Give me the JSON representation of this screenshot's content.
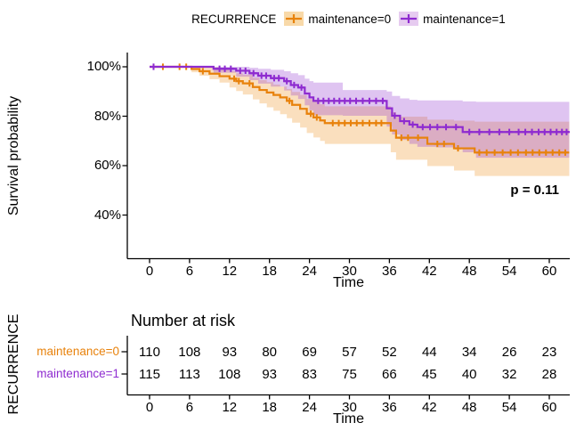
{
  "legend": {
    "title": "RECURRENCE",
    "items": [
      {
        "label": "maintenance=0",
        "line_color": "#E8820C",
        "fill_color": "#F8D9A9"
      },
      {
        "label": "maintenance=1",
        "line_color": "#8E2BD0",
        "fill_color": "#E6CBF0"
      }
    ]
  },
  "axes": {
    "y_title": "Survival probability",
    "x_title": "Time",
    "y_tick_labels": [
      "100%",
      "80%",
      "60%",
      "40%"
    ],
    "y_tick_values": [
      100,
      80,
      60,
      40
    ],
    "x_ticks": [
      0,
      6,
      12,
      18,
      24,
      30,
      36,
      42,
      48,
      54,
      60
    ]
  },
  "annotation": {
    "p_value": "p = 0.11"
  },
  "risk_table": {
    "title": "Number at risk",
    "axis_label": "RECURRENCE",
    "x_title": "Time",
    "x_ticks": [
      0,
      6,
      12,
      18,
      24,
      30,
      36,
      42,
      48,
      54,
      60
    ],
    "rows": [
      {
        "label": "maintenance=0",
        "color": "#E8820C",
        "values": [
          110,
          108,
          93,
          80,
          69,
          57,
          52,
          44,
          34,
          26,
          23
        ]
      },
      {
        "label": "maintenance=1",
        "color": "#8E2BD0",
        "values": [
          115,
          113,
          108,
          93,
          83,
          75,
          66,
          45,
          40,
          32,
          28
        ]
      }
    ]
  },
  "chart_data": {
    "type": "line",
    "subtype": "kaplan-meier-step",
    "title": "",
    "xlabel": "Time",
    "ylabel": "Survival probability",
    "xlim": [
      0,
      63
    ],
    "ylim_pct": [
      35,
      100
    ],
    "p_value": "p = 0.11",
    "x_ticks": [
      0,
      6,
      12,
      18,
      24,
      30,
      36,
      42,
      48,
      54,
      60
    ],
    "y_ticks_pct": [
      100,
      80,
      60,
      40
    ],
    "series": [
      {
        "name": "maintenance=0",
        "color": "#E8820C",
        "band_fill": "rgba(240,150,40,0.30)",
        "steps": [
          [
            0,
            100
          ],
          [
            6.3,
            99.1
          ],
          [
            7.5,
            98.2
          ],
          [
            9,
            97.2
          ],
          [
            10.5,
            96.2
          ],
          [
            12,
            95.2
          ],
          [
            13,
            94.2
          ],
          [
            14,
            93.3
          ],
          [
            15.5,
            91.8
          ],
          [
            16.5,
            90.6
          ],
          [
            17.6,
            89.6
          ],
          [
            18.6,
            88.6
          ],
          [
            19.6,
            87.6
          ],
          [
            20.6,
            86.2
          ],
          [
            21.4,
            84.6
          ],
          [
            22.6,
            83
          ],
          [
            23.6,
            81
          ],
          [
            24.6,
            79.5
          ],
          [
            25.6,
            78.3
          ],
          [
            26.3,
            77.2
          ],
          [
            36.2,
            74.2
          ],
          [
            37,
            71.3
          ],
          [
            41.7,
            68.8
          ],
          [
            45.7,
            67
          ],
          [
            48.8,
            65.3
          ]
        ],
        "censor_times": [
          2,
          4.5,
          5.5,
          8,
          12.7,
          13.4,
          15,
          21,
          24.2,
          25.1,
          27.5,
          28.4,
          29.3,
          30.2,
          31.1,
          32,
          33,
          34,
          34.8,
          37.8,
          38.8,
          40.3,
          43.2,
          44.2,
          46.3,
          49.5,
          50.6,
          51.8,
          53,
          54.2,
          55.3,
          56.5,
          57.5,
          58.5,
          59.5,
          60.5,
          61.5,
          62.4
        ],
        "ci_band": [
          [
            0,
            100,
            100
          ],
          [
            6.3,
            97.8,
            100
          ],
          [
            7.5,
            96.4,
            100
          ],
          [
            9,
            95,
            99.8
          ],
          [
            10.5,
            93.6,
            99.2
          ],
          [
            12,
            91.6,
            98.2
          ],
          [
            13,
            90.2,
            97.4
          ],
          [
            14,
            88.8,
            96.8
          ],
          [
            15.5,
            86.8,
            95.6
          ],
          [
            16.5,
            85.2,
            94.6
          ],
          [
            17.6,
            83.6,
            93.8
          ],
          [
            18.6,
            82.2,
            92.8
          ],
          [
            19.6,
            80.8,
            92
          ],
          [
            20.6,
            79.2,
            91
          ],
          [
            21.4,
            77.4,
            89.8
          ],
          [
            22.6,
            75.4,
            88.6
          ],
          [
            23.6,
            73.2,
            87
          ],
          [
            24.6,
            71.4,
            85.8
          ],
          [
            25.6,
            70,
            84.8
          ],
          [
            26.3,
            68.8,
            84
          ],
          [
            36.2,
            65.4,
            81.6
          ],
          [
            37,
            62.4,
            79.8
          ],
          [
            41.7,
            59.8,
            78.6
          ],
          [
            45.7,
            58,
            78.2
          ],
          [
            48.8,
            55.8,
            77.8
          ]
        ]
      },
      {
        "name": "maintenance=1",
        "color": "#8E2BD0",
        "band_fill": "rgba(150,60,210,0.30)",
        "steps": [
          [
            0,
            100
          ],
          [
            9.6,
            99.2
          ],
          [
            13,
            98.4
          ],
          [
            15,
            97.4
          ],
          [
            16.3,
            96.4
          ],
          [
            18.2,
            95.4
          ],
          [
            20.2,
            94.2
          ],
          [
            21.2,
            92.6
          ],
          [
            22.3,
            91.6
          ],
          [
            23.3,
            89.2
          ],
          [
            24,
            87.6
          ],
          [
            24.6,
            86.2
          ],
          [
            35.6,
            83.2
          ],
          [
            36.4,
            80.2
          ],
          [
            37.6,
            78
          ],
          [
            39,
            76.6
          ],
          [
            40.2,
            75.6
          ],
          [
            47,
            73.6
          ]
        ],
        "censor_times": [
          0.6,
          10.5,
          11.3,
          12.2,
          13.6,
          14.4,
          15.6,
          16.8,
          17.5,
          18.7,
          19.4,
          20.6,
          21.7,
          22.8,
          25.3,
          26.1,
          26.9,
          27.7,
          28.5,
          29.3,
          30.1,
          31,
          32,
          33,
          34,
          35,
          36.8,
          38.2,
          39.5,
          41,
          42.1,
          43.2,
          44.5,
          46,
          48,
          49.5,
          51,
          52.5,
          54,
          55.4,
          56.4,
          57.4,
          58.4,
          59.3,
          60.2,
          61.1,
          61.9,
          62.6
        ],
        "ci_band": [
          [
            0,
            100,
            100
          ],
          [
            9.6,
            97.6,
            100
          ],
          [
            13,
            96,
            100
          ],
          [
            15,
            94.6,
            99.6
          ],
          [
            16.3,
            93.2,
            99.2
          ],
          [
            18.2,
            92,
            98.8
          ],
          [
            20.2,
            90.4,
            98.2
          ],
          [
            21.2,
            88.4,
            97.4
          ],
          [
            22.3,
            87,
            96.6
          ],
          [
            23.3,
            84.4,
            95.2
          ],
          [
            24,
            82.4,
            94.2
          ],
          [
            24.6,
            80.4,
            93.6
          ],
          [
            29,
            80.2,
            90.6
          ],
          [
            35.6,
            75.8,
            90
          ],
          [
            36.4,
            72.6,
            88.2
          ],
          [
            37.6,
            70.4,
            87.2
          ],
          [
            39,
            68.8,
            86.6
          ],
          [
            40.2,
            67.6,
            86.4
          ],
          [
            43,
            67.4,
            86.4
          ],
          [
            47,
            65.4,
            86
          ],
          [
            49,
            63.2,
            85.8
          ]
        ]
      }
    ]
  }
}
